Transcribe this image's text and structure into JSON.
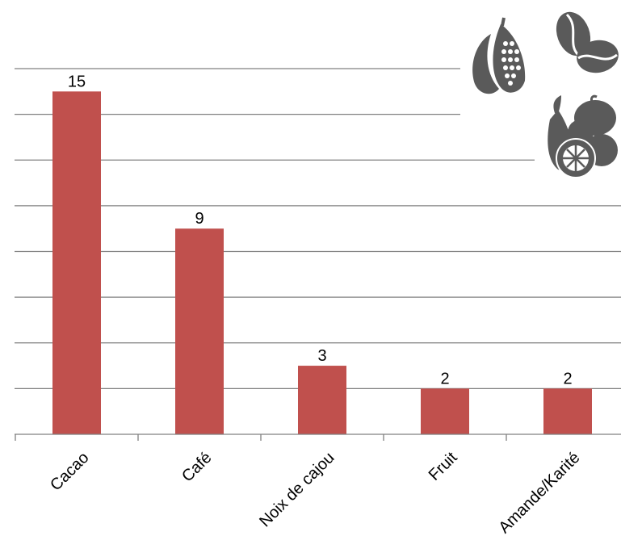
{
  "chart_data": {
    "type": "bar",
    "categories": [
      "Cacao",
      "Café",
      "Noix de cajou",
      "Fruit",
      "Amande/Karité"
    ],
    "values": [
      15,
      9,
      3,
      2,
      2
    ],
    "data_labels": [
      "15",
      "9",
      "3",
      "2",
      "2"
    ],
    "ylim": [
      0,
      16
    ],
    "grid": true,
    "legend": "none",
    "bar_color": "#c0504d"
  },
  "colors": {
    "gridline": "#808080",
    "axis": "#808080",
    "icon": "#5a5a5a"
  },
  "icons": [
    "cacao-pod-icon",
    "coffee-beans-icon",
    "fruits-icon"
  ]
}
